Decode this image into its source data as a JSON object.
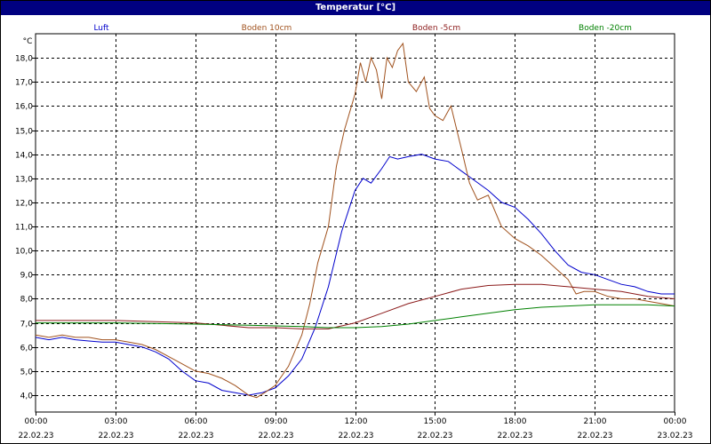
{
  "window": {
    "title": "Temperatur [°C]"
  },
  "colors": {
    "luft": "#0000cc",
    "boden_10": "#a0521e",
    "boden_m5": "#8b1a1a",
    "boden_m20": "#008000",
    "grid": "#000000",
    "title_bg": "#000080"
  },
  "chart_data": {
    "type": "line",
    "title": "Temperatur [°C]",
    "ylabel": "°C",
    "xlabel": "",
    "grid": true,
    "legend_placement": "top",
    "ylim": [
      3.3,
      19.0
    ],
    "xlim": [
      0,
      24
    ],
    "y_ticks": [
      4.0,
      5.0,
      6.0,
      7.0,
      8.0,
      9.0,
      10.0,
      11.0,
      12.0,
      13.0,
      14.0,
      15.0,
      16.0,
      17.0,
      18.0
    ],
    "y_tick_labels": [
      "4,0",
      "5,0",
      "6,0",
      "7,0",
      "8,0",
      "9,0",
      "10,0",
      "11,0",
      "12,0",
      "13,0",
      "14,0",
      "15,0",
      "16,0",
      "17,0",
      "18,0"
    ],
    "x_ticks": [
      {
        "time": "00:00",
        "date": "22.02.23"
      },
      {
        "time": "03:00",
        "date": "22.02.23"
      },
      {
        "time": "06:00",
        "date": "22.02.23"
      },
      {
        "time": "09:00",
        "date": "22.02.23"
      },
      {
        "time": "12:00",
        "date": "22.02.23"
      },
      {
        "time": "15:00",
        "date": "22.02.23"
      },
      {
        "time": "18:00",
        "date": "22.02.23"
      },
      {
        "time": "21:00",
        "date": "22.02.23"
      },
      {
        "time": "00:00",
        "date": "23.02.23"
      }
    ],
    "series": [
      {
        "name": "Luft",
        "color": "#0000cc",
        "points": [
          [
            0.0,
            6.4
          ],
          [
            0.5,
            6.3
          ],
          [
            1.0,
            6.4
          ],
          [
            1.5,
            6.3
          ],
          [
            2.0,
            6.25
          ],
          [
            2.5,
            6.2
          ],
          [
            3.0,
            6.2
          ],
          [
            3.5,
            6.1
          ],
          [
            4.0,
            6.0
          ],
          [
            4.5,
            5.8
          ],
          [
            5.0,
            5.5
          ],
          [
            5.5,
            5.0
          ],
          [
            6.0,
            4.6
          ],
          [
            6.5,
            4.5
          ],
          [
            7.0,
            4.2
          ],
          [
            7.5,
            4.1
          ],
          [
            8.0,
            4.0
          ],
          [
            8.5,
            4.1
          ],
          [
            9.0,
            4.3
          ],
          [
            9.5,
            4.8
          ],
          [
            10.0,
            5.5
          ],
          [
            10.5,
            6.8
          ],
          [
            11.0,
            8.5
          ],
          [
            11.5,
            10.8
          ],
          [
            12.0,
            12.5
          ],
          [
            12.3,
            13.0
          ],
          [
            12.6,
            12.8
          ],
          [
            13.0,
            13.4
          ],
          [
            13.3,
            13.9
          ],
          [
            13.6,
            13.8
          ],
          [
            14.0,
            13.9
          ],
          [
            14.5,
            14.0
          ],
          [
            15.0,
            13.8
          ],
          [
            15.5,
            13.7
          ],
          [
            16.0,
            13.3
          ],
          [
            16.5,
            12.9
          ],
          [
            17.0,
            12.5
          ],
          [
            17.5,
            12.0
          ],
          [
            18.0,
            11.8
          ],
          [
            18.5,
            11.3
          ],
          [
            19.0,
            10.7
          ],
          [
            19.5,
            10.0
          ],
          [
            20.0,
            9.4
          ],
          [
            20.5,
            9.1
          ],
          [
            21.0,
            9.0
          ],
          [
            21.5,
            8.8
          ],
          [
            22.0,
            8.6
          ],
          [
            22.5,
            8.5
          ],
          [
            23.0,
            8.3
          ],
          [
            23.5,
            8.2
          ],
          [
            24.0,
            8.2
          ]
        ]
      },
      {
        "name": "Boden 10cm",
        "color": "#a0521e",
        "points": [
          [
            0.0,
            6.5
          ],
          [
            0.5,
            6.4
          ],
          [
            1.0,
            6.5
          ],
          [
            1.5,
            6.4
          ],
          [
            2.0,
            6.4
          ],
          [
            2.5,
            6.3
          ],
          [
            3.0,
            6.3
          ],
          [
            3.5,
            6.2
          ],
          [
            4.0,
            6.1
          ],
          [
            4.5,
            5.9
          ],
          [
            5.0,
            5.6
          ],
          [
            5.5,
            5.3
          ],
          [
            6.0,
            5.0
          ],
          [
            6.5,
            4.9
          ],
          [
            7.0,
            4.7
          ],
          [
            7.5,
            4.4
          ],
          [
            8.0,
            4.0
          ],
          [
            8.3,
            3.9
          ],
          [
            8.6,
            4.1
          ],
          [
            9.0,
            4.4
          ],
          [
            9.5,
            5.2
          ],
          [
            10.0,
            6.5
          ],
          [
            10.3,
            7.8
          ],
          [
            10.6,
            9.5
          ],
          [
            11.0,
            11.0
          ],
          [
            11.3,
            13.5
          ],
          [
            11.6,
            15.0
          ],
          [
            12.0,
            16.5
          ],
          [
            12.2,
            17.8
          ],
          [
            12.4,
            17.0
          ],
          [
            12.6,
            18.0
          ],
          [
            12.8,
            17.5
          ],
          [
            13.0,
            16.3
          ],
          [
            13.2,
            18.0
          ],
          [
            13.4,
            17.6
          ],
          [
            13.6,
            18.3
          ],
          [
            13.8,
            18.6
          ],
          [
            14.0,
            17.0
          ],
          [
            14.3,
            16.6
          ],
          [
            14.6,
            17.2
          ],
          [
            14.8,
            15.9
          ],
          [
            15.0,
            15.6
          ],
          [
            15.3,
            15.4
          ],
          [
            15.6,
            16.0
          ],
          [
            16.0,
            14.2
          ],
          [
            16.3,
            12.8
          ],
          [
            16.6,
            12.1
          ],
          [
            17.0,
            12.3
          ],
          [
            17.5,
            11.0
          ],
          [
            18.0,
            10.5
          ],
          [
            18.5,
            10.2
          ],
          [
            19.0,
            9.8
          ],
          [
            19.5,
            9.3
          ],
          [
            20.0,
            8.8
          ],
          [
            20.3,
            8.2
          ],
          [
            20.6,
            8.3
          ],
          [
            21.0,
            8.3
          ],
          [
            21.5,
            8.1
          ],
          [
            22.0,
            8.0
          ],
          [
            22.5,
            8.0
          ],
          [
            23.0,
            7.9
          ],
          [
            23.5,
            7.8
          ],
          [
            24.0,
            7.7
          ]
        ]
      },
      {
        "name": "Boden -5cm",
        "color": "#8b1a1a",
        "points": [
          [
            0.0,
            7.1
          ],
          [
            3.0,
            7.1
          ],
          [
            6.0,
            7.0
          ],
          [
            7.0,
            6.9
          ],
          [
            8.0,
            6.8
          ],
          [
            9.0,
            6.8
          ],
          [
            10.0,
            6.75
          ],
          [
            11.0,
            6.75
          ],
          [
            12.0,
            7.0
          ],
          [
            13.0,
            7.4
          ],
          [
            14.0,
            7.8
          ],
          [
            15.0,
            8.1
          ],
          [
            16.0,
            8.4
          ],
          [
            17.0,
            8.55
          ],
          [
            18.0,
            8.6
          ],
          [
            19.0,
            8.6
          ],
          [
            20.0,
            8.5
          ],
          [
            21.0,
            8.4
          ],
          [
            22.0,
            8.3
          ],
          [
            23.0,
            8.1
          ],
          [
            24.0,
            8.0
          ]
        ]
      },
      {
        "name": "Boden -20cm",
        "color": "#008000",
        "points": [
          [
            0.0,
            7.0
          ],
          [
            3.0,
            7.0
          ],
          [
            6.0,
            6.95
          ],
          [
            8.0,
            6.9
          ],
          [
            10.0,
            6.85
          ],
          [
            11.0,
            6.8
          ],
          [
            12.0,
            6.8
          ],
          [
            13.0,
            6.85
          ],
          [
            14.0,
            6.95
          ],
          [
            15.0,
            7.1
          ],
          [
            16.0,
            7.25
          ],
          [
            17.0,
            7.4
          ],
          [
            18.0,
            7.55
          ],
          [
            19.0,
            7.65
          ],
          [
            20.0,
            7.7
          ],
          [
            21.0,
            7.75
          ],
          [
            22.0,
            7.75
          ],
          [
            23.0,
            7.75
          ],
          [
            24.0,
            7.7
          ]
        ]
      }
    ]
  }
}
